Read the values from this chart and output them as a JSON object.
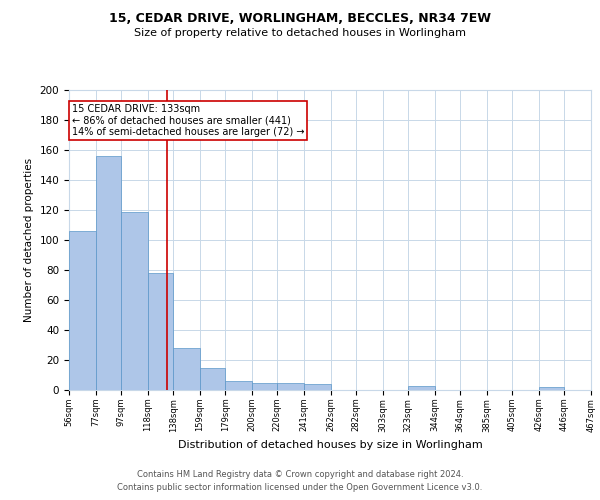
{
  "title1": "15, CEDAR DRIVE, WORLINGHAM, BECCLES, NR34 7EW",
  "title2": "Size of property relative to detached houses in Worlingham",
  "xlabel": "Distribution of detached houses by size in Worlingham",
  "ylabel": "Number of detached properties",
  "bar_values": [
    106,
    156,
    119,
    78,
    28,
    15,
    6,
    5,
    5,
    4,
    0,
    0,
    0,
    3,
    0,
    0,
    0,
    0,
    2,
    0
  ],
  "bin_edges": [
    56,
    77,
    97,
    118,
    138,
    159,
    179,
    200,
    220,
    241,
    262,
    282,
    303,
    323,
    344,
    364,
    385,
    405,
    426,
    446,
    467
  ],
  "xlabels": [
    "56sqm",
    "77sqm",
    "97sqm",
    "118sqm",
    "138sqm",
    "159sqm",
    "179sqm",
    "200sqm",
    "220sqm",
    "241sqm",
    "262sqm",
    "282sqm",
    "303sqm",
    "323sqm",
    "344sqm",
    "364sqm",
    "385sqm",
    "405sqm",
    "426sqm",
    "446sqm",
    "467sqm"
  ],
  "property_size": 133,
  "annotation_line1": "15 CEDAR DRIVE: 133sqm",
  "annotation_line2": "← 86% of detached houses are smaller (441)",
  "annotation_line3": "14% of semi-detached houses are larger (72) →",
  "bar_color": "#aec6e8",
  "bar_edge_color": "#5a96c8",
  "red_line_color": "#cc0000",
  "annotation_box_color": "#cc0000",
  "background_color": "#ffffff",
  "grid_color": "#c8d8e8",
  "ylim": [
    0,
    200
  ],
  "yticks": [
    0,
    20,
    40,
    60,
    80,
    100,
    120,
    140,
    160,
    180,
    200
  ],
  "footer1": "Contains HM Land Registry data © Crown copyright and database right 2024.",
  "footer2": "Contains public sector information licensed under the Open Government Licence v3.0."
}
